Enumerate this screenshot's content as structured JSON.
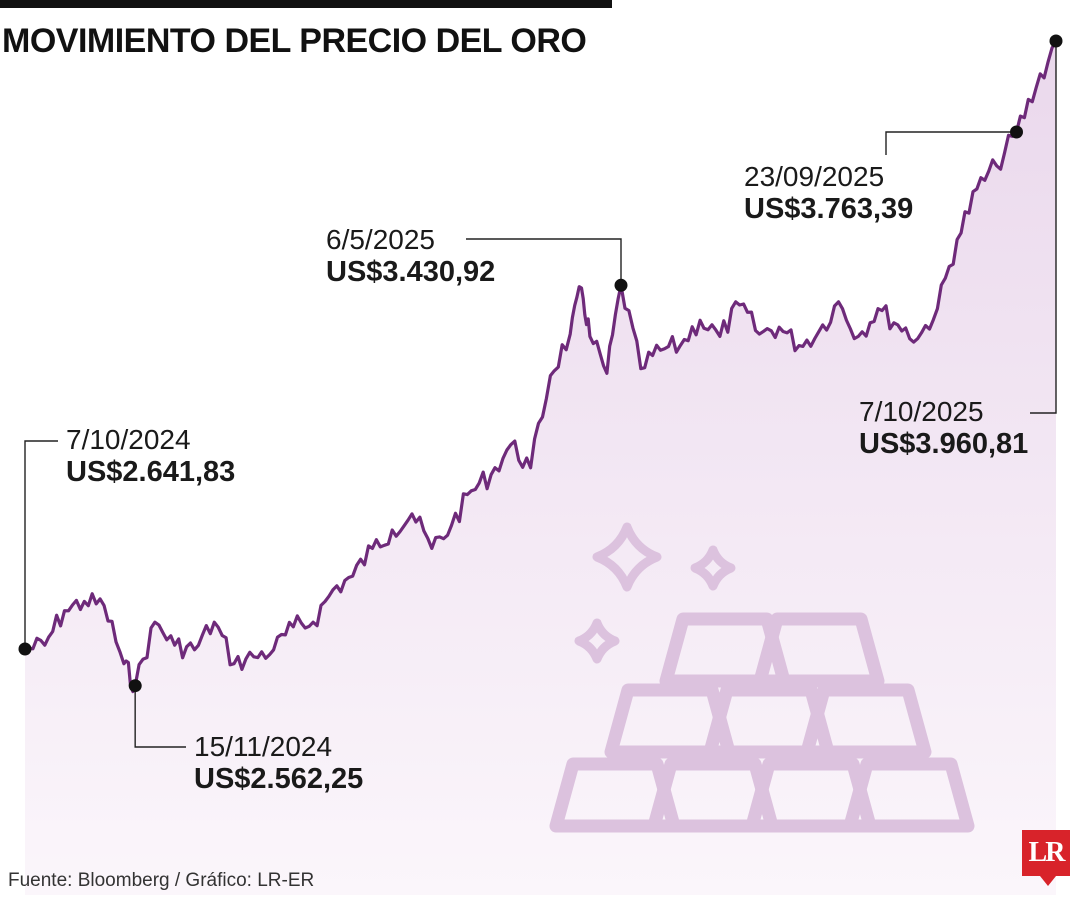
{
  "title": "MOVIMIENTO DEL PRECIO DEL ORO",
  "source": "Fuente: Bloomberg / Gráfico: LR-ER",
  "logo_text": "LR",
  "colors": {
    "line": "#6e2a7a",
    "fill": "#f4eaf4",
    "icon": "#dcc2de",
    "logo": "#d8232a"
  },
  "icon": "gold-bars-sparkles-icon",
  "chart_data": {
    "type": "area",
    "title": "MOVIMIENTO DEL PRECIO DEL ORO",
    "xlabel": "",
    "ylabel": "",
    "grid": false,
    "legend": "none",
    "x_range": [
      "2024-10-07",
      "2025-10-07"
    ],
    "ylim": [
      2200,
      4000
    ],
    "series": [
      {
        "values": [
          [
            "2024-10-07",
            2641.83
          ],
          [
            "2024-10-14",
            2650
          ],
          [
            "2024-10-21",
            2725
          ],
          [
            "2024-10-28",
            2745
          ],
          [
            "2024-11-04",
            2736
          ],
          [
            "2024-11-11",
            2610
          ],
          [
            "2024-11-15",
            2562.25
          ],
          [
            "2024-11-22",
            2700
          ],
          [
            "2024-11-29",
            2650
          ],
          [
            "2024-12-06",
            2640
          ],
          [
            "2024-12-13",
            2700
          ],
          [
            "2024-12-20",
            2610
          ],
          [
            "2024-12-27",
            2625
          ],
          [
            "2025-01-03",
            2640
          ],
          [
            "2025-01-10",
            2690
          ],
          [
            "2025-01-17",
            2700
          ],
          [
            "2025-01-24",
            2770
          ],
          [
            "2025-01-31",
            2800
          ],
          [
            "2025-02-07",
            2860
          ],
          [
            "2025-02-14",
            2900
          ],
          [
            "2025-02-21",
            2935
          ],
          [
            "2025-02-28",
            2860
          ],
          [
            "2025-03-07",
            2910
          ],
          [
            "2025-03-14",
            2985
          ],
          [
            "2025-03-21",
            3020
          ],
          [
            "2025-03-28",
            3085
          ],
          [
            "2025-04-04",
            3035
          ],
          [
            "2025-04-11",
            3235
          ],
          [
            "2025-04-18",
            3325
          ],
          [
            "2025-04-22",
            3425
          ],
          [
            "2025-04-25",
            3320
          ],
          [
            "2025-05-01",
            3240
          ],
          [
            "2025-05-06",
            3430.92
          ],
          [
            "2025-05-13",
            3250
          ],
          [
            "2025-05-20",
            3290
          ],
          [
            "2025-05-27",
            3300
          ],
          [
            "2025-06-03",
            3355
          ],
          [
            "2025-06-10",
            3320
          ],
          [
            "2025-06-17",
            3388
          ],
          [
            "2025-06-24",
            3325
          ],
          [
            "2025-07-01",
            3340
          ],
          [
            "2025-07-08",
            3300
          ],
          [
            "2025-07-15",
            3330
          ],
          [
            "2025-07-22",
            3395
          ],
          [
            "2025-07-29",
            3320
          ],
          [
            "2025-08-05",
            3380
          ],
          [
            "2025-08-12",
            3345
          ],
          [
            "2025-08-19",
            3315
          ],
          [
            "2025-08-26",
            3380
          ],
          [
            "2025-09-02",
            3530
          ],
          [
            "2025-09-09",
            3640
          ],
          [
            "2025-09-16",
            3690
          ],
          [
            "2025-09-23",
            3763.39
          ],
          [
            "2025-09-30",
            3860
          ],
          [
            "2025-10-07",
            3960.81
          ]
        ]
      }
    ],
    "annotations": [
      {
        "date": "7/10/2024",
        "value": "US$2.641,83",
        "x": "2024-10-07",
        "y": 2641.83
      },
      {
        "date": "15/11/2024",
        "value": "US$2.562,25",
        "x": "2024-11-15",
        "y": 2562.25
      },
      {
        "date": "6/5/2025",
        "value": "US$3.430,92",
        "x": "2025-05-06",
        "y": 3430.92
      },
      {
        "date": "23/09/2025",
        "value": "US$3.763,39",
        "x": "2025-09-23",
        "y": 3763.39
      },
      {
        "date": "7/10/2025",
        "value": "US$3.960,81",
        "x": "2025-10-07",
        "y": 3960.81
      }
    ]
  }
}
